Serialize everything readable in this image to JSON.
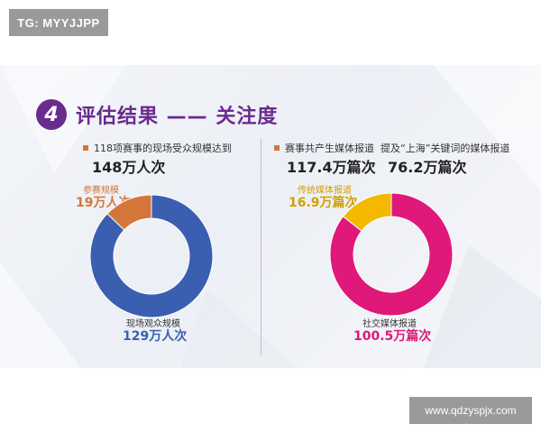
{
  "watermark_top": "TG: MYYJJPP",
  "watermark_bottom": "www.qdzyspjx.com",
  "section": {
    "number": "4",
    "title": "评估结果 —— 关注度"
  },
  "left": {
    "stat_label": "118项赛事的现场受众规模达到",
    "stat_value": "148万人次",
    "chart": {
      "segments": [
        {
          "label": "参赛规模",
          "value_text": "19万人次",
          "value": 19,
          "color": "#d4763a"
        },
        {
          "label": "现场观众规模",
          "value_text": "129万人次",
          "value": 129,
          "color": "#3a5fb0"
        }
      ]
    }
  },
  "right": {
    "stat1_label": "赛事共产生媒体报道",
    "stat1_value": "117.4万篇次",
    "stat2_label": "提及“上海”关键词的媒体报道",
    "stat2_value": "76.2万篇次",
    "chart": {
      "segments": [
        {
          "label": "传统媒体报道",
          "value_text": "16.9万篇次",
          "value": 16.9,
          "color": "#f5b800"
        },
        {
          "label": "社交媒体报道",
          "value_text": "100.5万篇次",
          "value": 100.5,
          "color": "#e0187a"
        }
      ]
    }
  }
}
